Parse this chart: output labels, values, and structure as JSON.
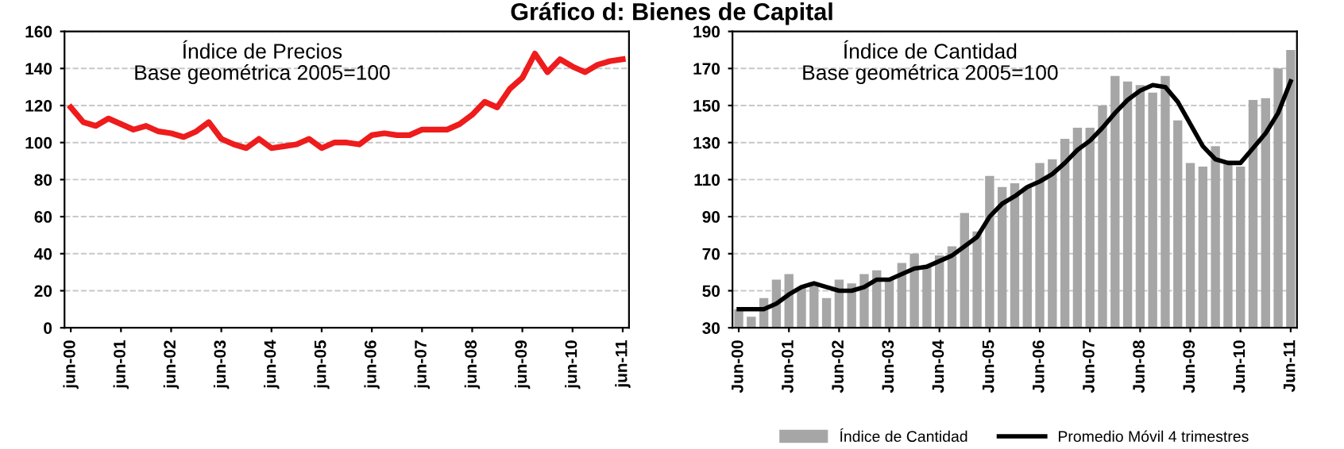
{
  "chart_data": [
    {
      "type": "line",
      "title": "Gráfico d: Bienes de Capital",
      "annotations": [
        "Índice de Precios",
        "Base geométrica 2005=100"
      ],
      "categories": [
        "jun-00",
        null,
        null,
        null,
        "jun-01",
        null,
        null,
        null,
        "jun-02",
        null,
        null,
        null,
        "jun-03",
        null,
        null,
        null,
        "jun-04",
        null,
        null,
        null,
        "jun-05",
        null,
        null,
        null,
        "jun-06",
        null,
        null,
        null,
        "jun-07",
        null,
        null,
        null,
        "jun-08",
        null,
        null,
        null,
        "jun-09",
        null,
        null,
        null,
        "jun-10",
        null,
        null,
        null,
        "jun-11"
      ],
      "series": [
        {
          "color": "#ee1c1c",
          "values": [
            119,
            111,
            109,
            113,
            110,
            107,
            109,
            106,
            105,
            103,
            106,
            111,
            102,
            99,
            97,
            102,
            97,
            98,
            99,
            102,
            97,
            100,
            100,
            99,
            104,
            105,
            104,
            104,
            107,
            107,
            107,
            110,
            115,
            122,
            119,
            129,
            135,
            148,
            138,
            145,
            141,
            138,
            142,
            144,
            145
          ]
        }
      ],
      "ylim": [
        0,
        160
      ],
      "yticks": [
        0,
        20,
        40,
        60,
        80,
        100,
        120,
        140,
        160
      ],
      "grid": "y",
      "legend": false
    },
    {
      "type": "bar",
      "annotations": [
        "Índice de Cantidad",
        "Base geométrica 2005=100"
      ],
      "categories": [
        "Jun-00",
        null,
        null,
        null,
        "Jun-01",
        null,
        null,
        null,
        "Jun-02",
        null,
        null,
        null,
        "Jun-03",
        null,
        null,
        null,
        "Jun-04",
        null,
        null,
        null,
        "Jun-05",
        null,
        null,
        null,
        "Jun-06",
        null,
        null,
        null,
        "Jun-07",
        null,
        null,
        null,
        "Jun-08",
        null,
        null,
        null,
        "Jun-09",
        null,
        null,
        null,
        "Jun-10",
        null,
        null,
        null,
        "Jun-11"
      ],
      "series": [
        {
          "name": "Índice de Cantidad",
          "type": "bar",
          "color": "#a6a6a6",
          "values": [
            40,
            36,
            46,
            56,
            59,
            52,
            54,
            46,
            56,
            54,
            59,
            61,
            57,
            65,
            70,
            64,
            69,
            74,
            92,
            82,
            112,
            106,
            108,
            106,
            119,
            121,
            132,
            138,
            138,
            150,
            166,
            163,
            161,
            157,
            166,
            142,
            119,
            117,
            128,
            120,
            117,
            153,
            154,
            170,
            180
          ]
        },
        {
          "name": "Promedio Móvil 4 trimestres",
          "type": "line",
          "color": "#000000",
          "values": [
            40,
            40,
            40,
            43,
            48,
            52,
            54,
            52,
            50,
            50,
            52,
            56,
            56,
            59,
            62,
            63,
            66,
            69,
            74,
            79,
            90,
            97,
            101,
            106,
            109,
            113,
            119,
            126,
            131,
            138,
            146,
            153,
            158,
            161,
            160,
            152,
            140,
            128,
            121,
            119,
            119,
            127,
            135,
            146,
            163
          ]
        }
      ],
      "ylim": [
        30,
        190
      ],
      "yticks": [
        30,
        50,
        70,
        90,
        110,
        130,
        150,
        170,
        190
      ],
      "grid": "y",
      "legend": "bottom"
    }
  ]
}
